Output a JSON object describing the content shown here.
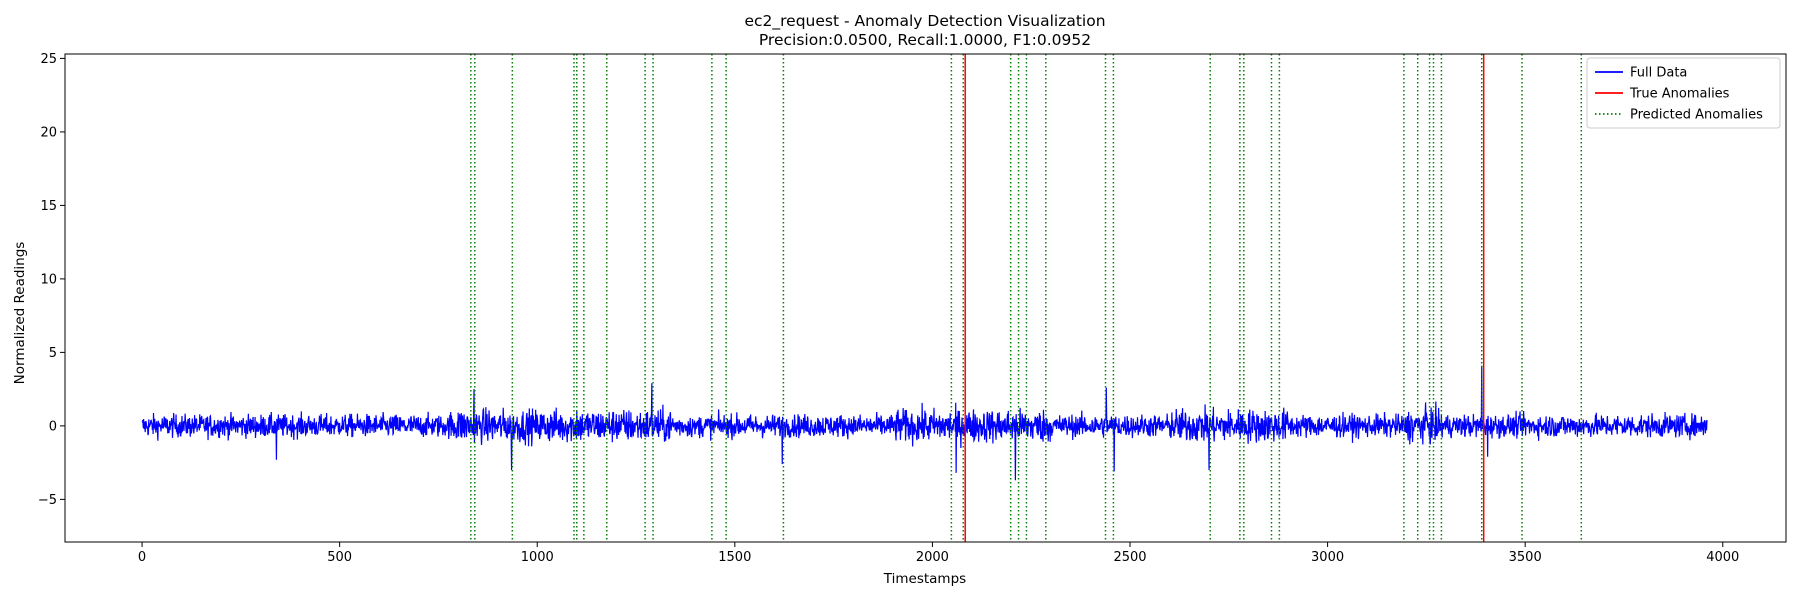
{
  "chart_data": {
    "type": "line",
    "title": "ec2_request - Anomaly Detection Visualization",
    "subtitle": "Precision:0.0500, Recall:1.0000, F1:0.0952",
    "xlabel": "Timestamps",
    "ylabel": "Normalized Readings",
    "xlim": [
      -195,
      4160
    ],
    "ylim": [
      -7.9,
      25.3
    ],
    "x_ticks": [
      0,
      500,
      1000,
      1500,
      2000,
      2500,
      3000,
      3500,
      4000
    ],
    "y_ticks": [
      -5,
      0,
      5,
      10,
      15,
      20,
      25
    ],
    "grid": false,
    "legend_position": "top-right",
    "colors": {
      "full_data": "#0000ff",
      "true_anomalies": "#ff0000",
      "predicted_anomalies": "#008000"
    },
    "series": [
      {
        "name": "Full Data",
        "kind": "line",
        "style": "solid",
        "x_range": [
          0,
          3960
        ],
        "sampled_x": [
          0,
          100,
          200,
          300,
          340,
          500,
          700,
          800,
          840,
          935,
          1000,
          1100,
          1200,
          1290,
          1400,
          1480,
          1620,
          1800,
          2000,
          2060,
          2080,
          2150,
          2210,
          2300,
          2440,
          2460,
          2600,
          2700,
          2780,
          2900,
          3100,
          3250,
          3390,
          3405,
          3500,
          3700,
          3960
        ],
        "sampled_y": [
          0.3,
          -0.5,
          0.4,
          -0.6,
          -2.3,
          0.2,
          -0.3,
          0.9,
          2.5,
          -3.0,
          0.6,
          1.0,
          0.8,
          2.9,
          -0.2,
          -0.5,
          -2.6,
          -0.3,
          0.2,
          -3.2,
          -0.7,
          0.0,
          -3.7,
          -0.2,
          2.6,
          -3.1,
          0.1,
          -3.0,
          0.8,
          0.3,
          0.2,
          0.9,
          4.1,
          -2.1,
          0.5,
          0.1,
          0.4
        ]
      },
      {
        "name": "True Anomalies",
        "kind": "vline",
        "style": "solid",
        "x": [
          2083,
          3395
        ]
      },
      {
        "name": "Predicted Anomalies",
        "kind": "vline",
        "style": "dotted",
        "x": [
          832,
          842,
          937,
          1093,
          1100,
          1118,
          1176,
          1273,
          1293,
          1442,
          1478,
          1623,
          2048,
          2078,
          2198,
          2218,
          2238,
          2287,
          2438,
          2458,
          2703,
          2778,
          2788,
          2858,
          2878,
          3193,
          3228,
          3258,
          3268,
          3288,
          3390,
          3492,
          3642
        ]
      }
    ]
  }
}
